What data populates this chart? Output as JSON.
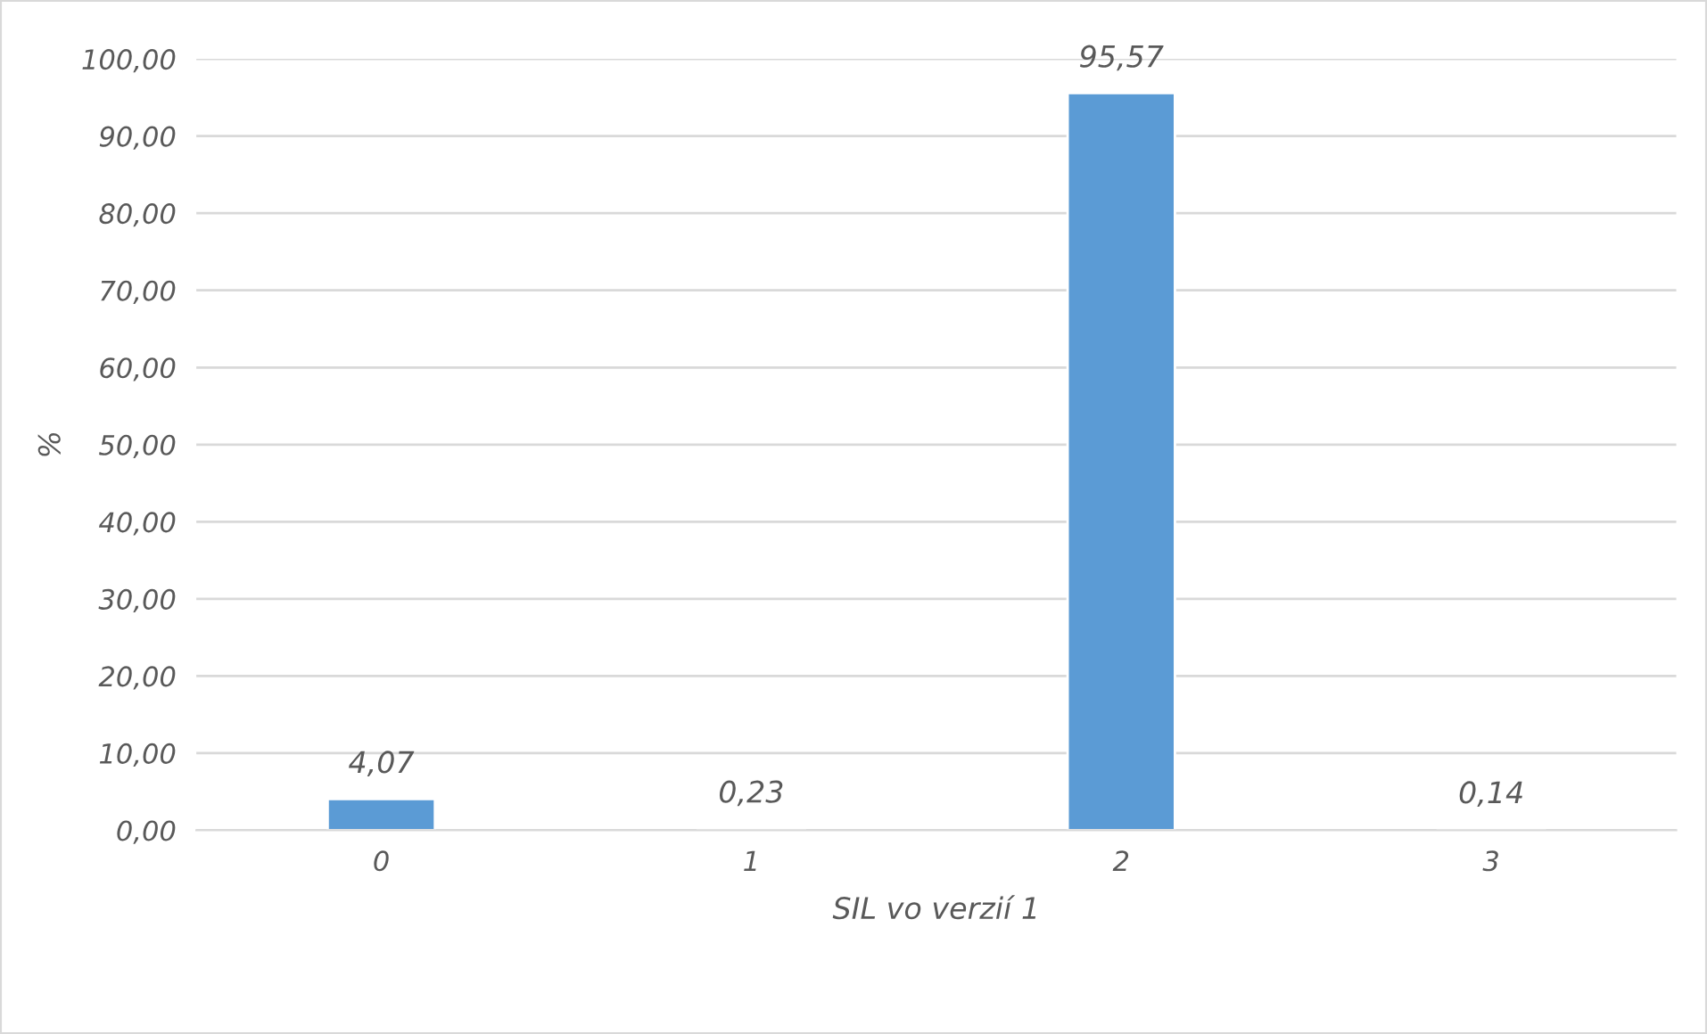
{
  "chart_data": {
    "type": "bar",
    "xlabel": "SIL vo verzií 1",
    "ylabel": "%",
    "categories": [
      "0",
      "1",
      "2",
      "3"
    ],
    "values": [
      4.07,
      0.23,
      95.57,
      0.14
    ],
    "value_labels": [
      "4,07",
      "0,23",
      "95,57",
      "0,14"
    ],
    "color": "#5b9bd5",
    "ylim": [
      0,
      100
    ],
    "yticks": [
      {
        "value": 0,
        "label": "0,00"
      },
      {
        "value": 10,
        "label": "10,00"
      },
      {
        "value": 20,
        "label": "20,00"
      },
      {
        "value": 30,
        "label": "30,00"
      },
      {
        "value": 40,
        "label": "40,00"
      },
      {
        "value": 50,
        "label": "50,00"
      },
      {
        "value": 60,
        "label": "60,00"
      },
      {
        "value": 70,
        "label": "70,00"
      },
      {
        "value": 80,
        "label": "80,00"
      },
      {
        "value": 90,
        "label": "90,00"
      },
      {
        "value": 100,
        "label": "100,00"
      }
    ],
    "grid": "y",
    "legend": false
  }
}
